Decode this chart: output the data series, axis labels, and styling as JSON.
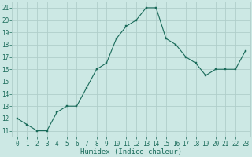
{
  "x": [
    0,
    1,
    2,
    3,
    4,
    5,
    6,
    7,
    8,
    9,
    10,
    11,
    12,
    13,
    14,
    15,
    16,
    17,
    18,
    19,
    20,
    21,
    22,
    23
  ],
  "y": [
    12,
    11.5,
    11,
    11,
    12.5,
    13,
    13,
    14.5,
    16,
    16.5,
    18.5,
    19.5,
    20,
    21,
    21,
    18.5,
    18,
    17,
    16.5,
    15.5,
    16,
    16,
    16,
    17.5
  ],
  "line_color": "#1a6b5a",
  "marker_color": "#1a6b5a",
  "bg_color": "#cce8e4",
  "grid_color": "#b0ceca",
  "xlabel": "Humidex (Indice chaleur)",
  "ylabel_ticks": [
    11,
    12,
    13,
    14,
    15,
    16,
    17,
    18,
    19,
    20,
    21
  ],
  "ylim": [
    10.5,
    21.5
  ],
  "xlim": [
    -0.5,
    23.5
  ],
  "font_color": "#1a6b5a",
  "font_family": "monospace",
  "tick_fontsize": 5.5,
  "xlabel_fontsize": 6.5
}
